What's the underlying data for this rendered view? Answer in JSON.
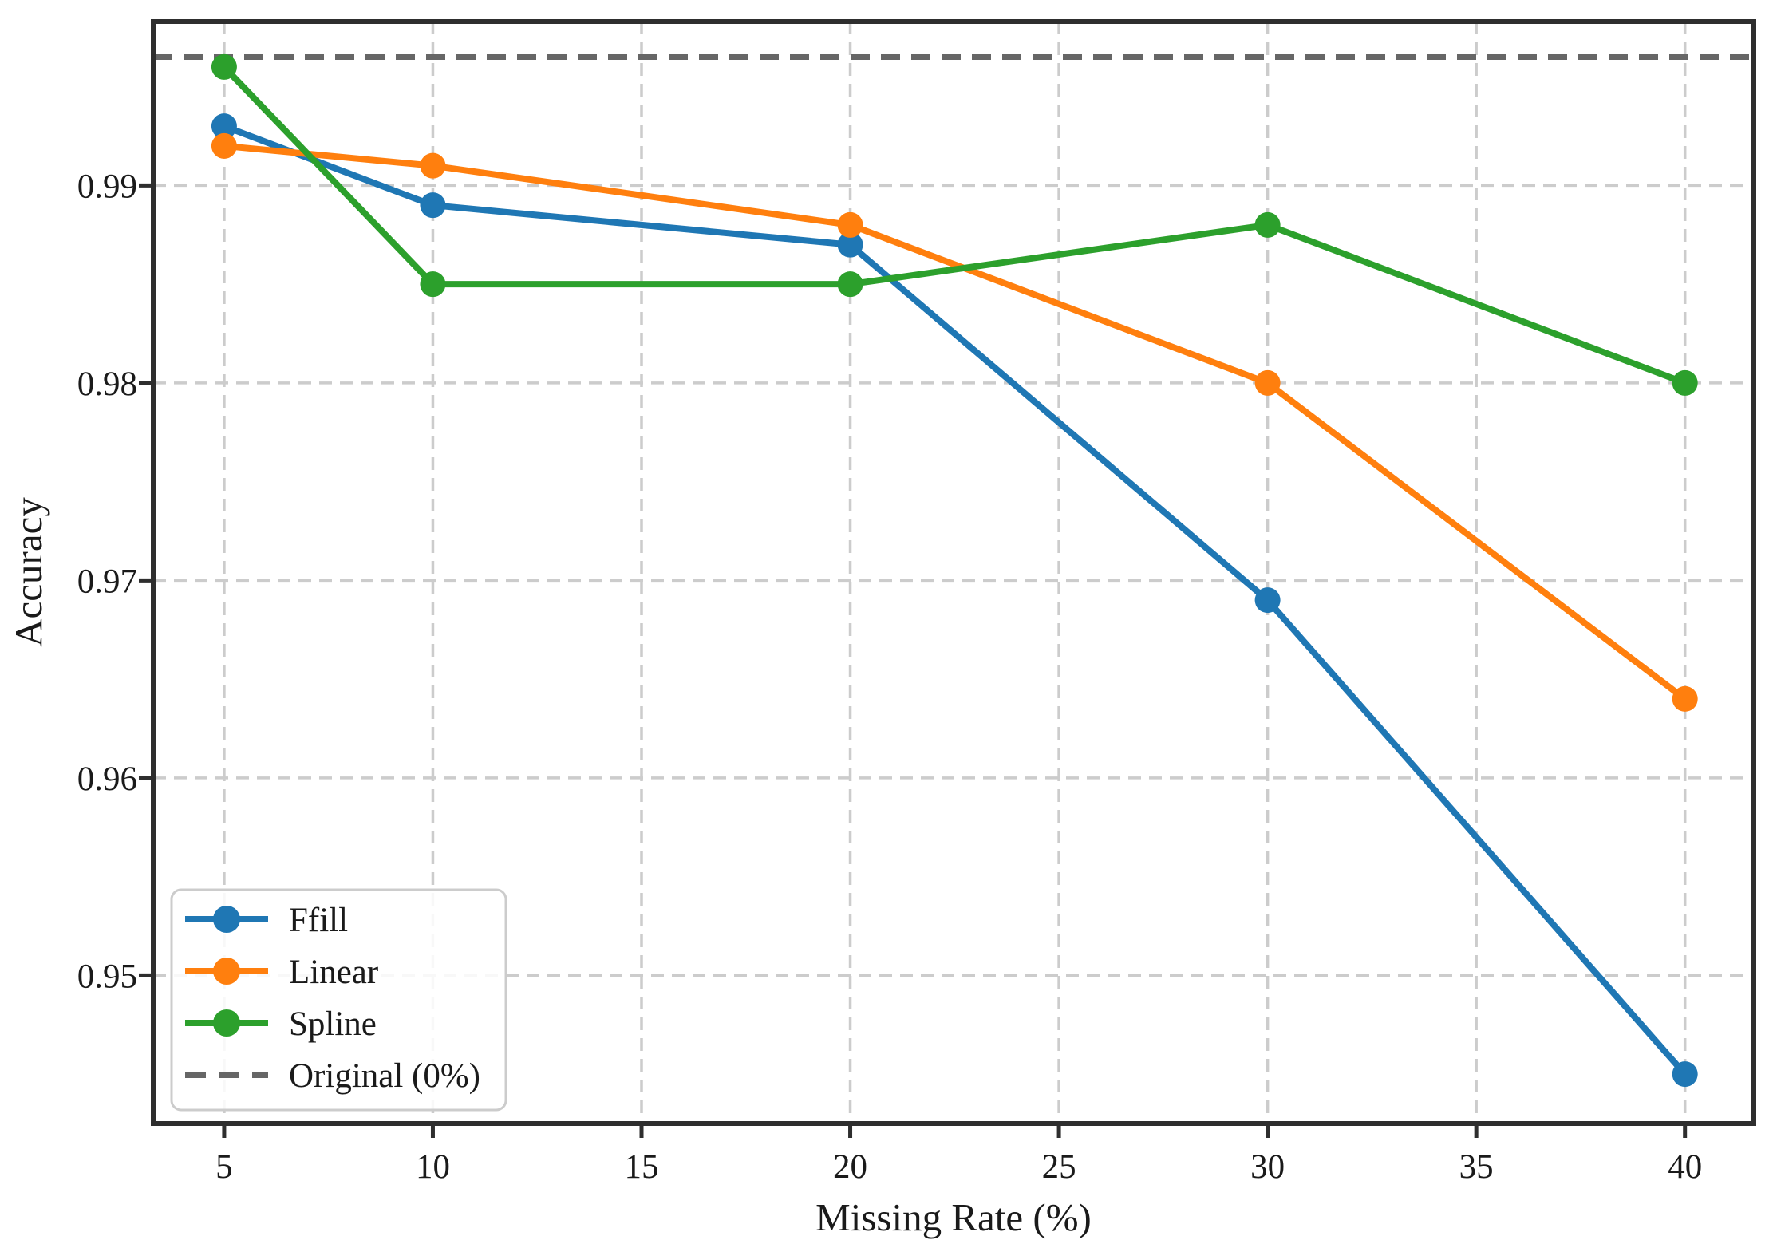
{
  "chart_data": {
    "type": "line",
    "title": "",
    "xlabel": "Missing Rate (%)",
    "ylabel": "Accuracy",
    "x": [
      5,
      10,
      20,
      30,
      40
    ],
    "series": [
      {
        "name": "Ffill",
        "color": "#1f77b4",
        "values": [
          0.993,
          0.989,
          0.987,
          0.969,
          0.945
        ]
      },
      {
        "name": "Linear",
        "color": "#ff7f0e",
        "values": [
          0.992,
          0.991,
          0.988,
          0.98,
          0.964
        ]
      },
      {
        "name": "Spline",
        "color": "#2ca02c",
        "values": [
          0.996,
          0.985,
          0.985,
          0.988,
          0.98
        ]
      }
    ],
    "reference_line": {
      "name": "Original (0%)",
      "value": 0.9965,
      "color": "#666666",
      "style": "dashed"
    },
    "x_ticks": [
      5,
      10,
      15,
      20,
      25,
      30,
      35,
      40
    ],
    "x_tick_labels": [
      "5",
      "10",
      "15",
      "20",
      "25",
      "30",
      "35",
      "40"
    ],
    "y_ticks": [
      0.95,
      0.96,
      0.97,
      0.98,
      0.99
    ],
    "y_tick_labels": [
      "0.95",
      "0.96",
      "0.97",
      "0.98",
      "0.99"
    ],
    "xlim": [
      3.3,
      41.65
    ],
    "ylim": [
      0.9425,
      0.9983
    ],
    "grid": true,
    "grid_style": "dashed",
    "legend_position": "lower left",
    "legend_entries": [
      "Ffill",
      "Linear",
      "Spline",
      "Original (0%)"
    ],
    "axis_color": "#2e2e2e",
    "grid_color": "#cccccc"
  }
}
